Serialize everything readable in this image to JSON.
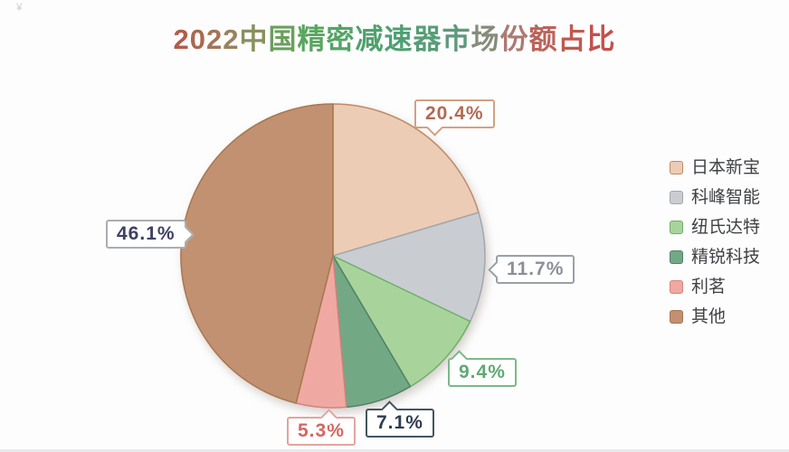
{
  "corner_mark": "¥",
  "chart_data": {
    "type": "pie",
    "title": "2022中国精密减速器市场份额占比",
    "legend_position": "right",
    "start_angle_deg": 0,
    "direction": "clockwise",
    "total": 100,
    "series": [
      {
        "name": "日本新宝",
        "value": 20.4,
        "label": "20.4%",
        "color": "#ecccb5",
        "stroke": "#c08a63",
        "label_color": "#b26a52",
        "label_border": "#d2a184"
      },
      {
        "name": "科峰智能",
        "value": 11.7,
        "label": "11.7%",
        "color": "#c9cdd2",
        "stroke": "#a2a7ad",
        "label_color": "#8b9097",
        "label_border": "#9aa0a6"
      },
      {
        "name": "纽氏达特",
        "value": 9.4,
        "label": "9.4%",
        "color": "#a8d49b",
        "stroke": "#6faf68",
        "label_color": "#61a873",
        "label_border": "#7cb989"
      },
      {
        "name": "精锐科技",
        "value": 7.1,
        "label": "7.1%",
        "color": "#73a885",
        "stroke": "#4f8168",
        "label_color": "#2e3c4e",
        "label_border": "#44555e"
      },
      {
        "name": "利茗",
        "value": 5.3,
        "label": "5.3%",
        "color": "#efa9a2",
        "stroke": "#d4837c",
        "label_color": "#d3675f",
        "label_border": "#e4a49e"
      },
      {
        "name": "其他",
        "value": 46.1,
        "label": "46.1%",
        "color": "#c29171",
        "stroke": "#a8764e",
        "label_color": "#3f4063",
        "label_border": "#a9adb3"
      }
    ]
  },
  "title_colors": {
    "stops": [
      [
        0.0,
        "#b25c4a"
      ],
      [
        0.22,
        "#948a5f"
      ],
      [
        0.35,
        "#5aa75c"
      ],
      [
        0.55,
        "#4d9f72"
      ],
      [
        0.7,
        "#5f9a7c"
      ],
      [
        0.8,
        "#aa7f78"
      ],
      [
        0.9,
        "#c25a50"
      ],
      [
        1.0,
        "#c1514b"
      ]
    ]
  }
}
